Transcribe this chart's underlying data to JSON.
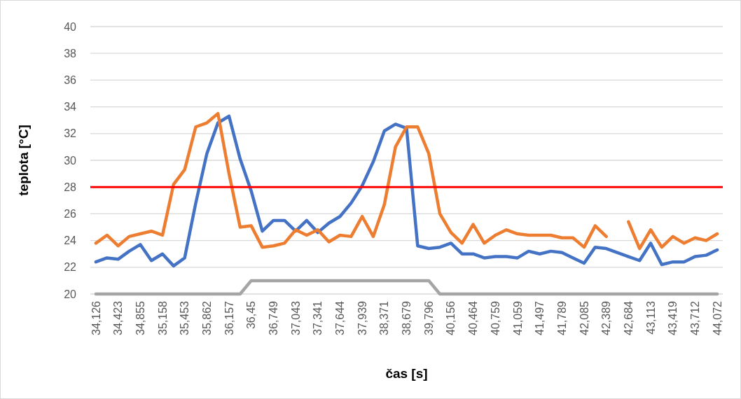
{
  "chart_data": {
    "type": "line",
    "xlabel": "čas [s]",
    "ylabel": "teplota [°C]",
    "categories": [
      "34,126",
      null,
      "34,423",
      null,
      "34,855",
      null,
      "35,158",
      null,
      "35,453",
      null,
      "35,862",
      null,
      "36,157",
      null,
      "36,45",
      null,
      "36,749",
      null,
      "37,043",
      null,
      "37,341",
      null,
      "37,644",
      null,
      "37,939",
      null,
      "38,371",
      null,
      "38,679",
      null,
      "39,796",
      null,
      "40,156",
      null,
      "40,464",
      null,
      "40,759",
      null,
      "41,059",
      null,
      "41,497",
      null,
      "41,789",
      null,
      "42,085",
      null,
      "42,389",
      null,
      "42,684",
      null,
      "43,113",
      null,
      "43,419",
      null,
      "43,712",
      null,
      "44,072"
    ],
    "series": [
      {
        "color": "#4472c4",
        "values": [
          22.4,
          22.7,
          22.6,
          23.2,
          23.7,
          22.5,
          23.0,
          22.1,
          22.7,
          26.8,
          30.5,
          32.8,
          33.3,
          30.1,
          27.7,
          24.7,
          25.5,
          25.5,
          24.7,
          25.5,
          24.6,
          25.3,
          25.8,
          26.8,
          28.1,
          29.9,
          32.2,
          32.7,
          32.4,
          23.6,
          23.4,
          23.5,
          23.8,
          23.0,
          23.0,
          22.7,
          22.8,
          22.8,
          22.7,
          23.2,
          23.0,
          23.2,
          23.1,
          22.7,
          22.3,
          23.5,
          23.4,
          23.1,
          22.8,
          22.5,
          23.8,
          22.2,
          22.4,
          22.4,
          22.8,
          22.9,
          23.3
        ]
      },
      {
        "color": "#ed7d31",
        "values": [
          23.8,
          24.4,
          23.6,
          24.3,
          24.5,
          24.7,
          24.4,
          28.2,
          29.3,
          32.5,
          32.8,
          33.5,
          29.0,
          25.0,
          25.1,
          23.5,
          23.6,
          23.8,
          24.8,
          24.4,
          24.8,
          23.9,
          24.4,
          24.3,
          25.8,
          24.3,
          26.7,
          31.0,
          32.5,
          32.5,
          30.5,
          26.0,
          24.6,
          23.8,
          25.2,
          23.8,
          24.4,
          24.8,
          24.5,
          24.4,
          24.4,
          24.4,
          24.2,
          24.2,
          23.5,
          25.1,
          24.3,
          null,
          25.4,
          23.4,
          24.8,
          23.5,
          24.3,
          23.8,
          24.2,
          24.0,
          24.5
        ]
      },
      {
        "color": "#a5a5a5",
        "values": [
          20,
          20,
          20,
          20,
          20,
          20,
          20,
          20,
          20,
          20,
          20,
          20,
          20,
          20,
          21,
          21,
          21,
          21,
          21,
          21,
          21,
          21,
          21,
          21,
          21,
          21,
          21,
          21,
          21,
          21,
          21,
          20,
          20,
          20,
          20,
          20,
          20,
          20,
          20,
          20,
          20,
          20,
          20,
          20,
          20,
          20,
          20,
          20,
          20,
          20,
          20,
          20,
          20,
          20,
          20,
          20,
          20
        ]
      }
    ],
    "ref_lines": [
      {
        "axis": "y",
        "value": 28,
        "color": "#ff0000"
      }
    ],
    "ylim": [
      20,
      40
    ],
    "yticks": [
      20,
      22,
      24,
      26,
      28,
      30,
      32,
      34,
      36,
      38,
      40
    ],
    "grid": "y"
  }
}
